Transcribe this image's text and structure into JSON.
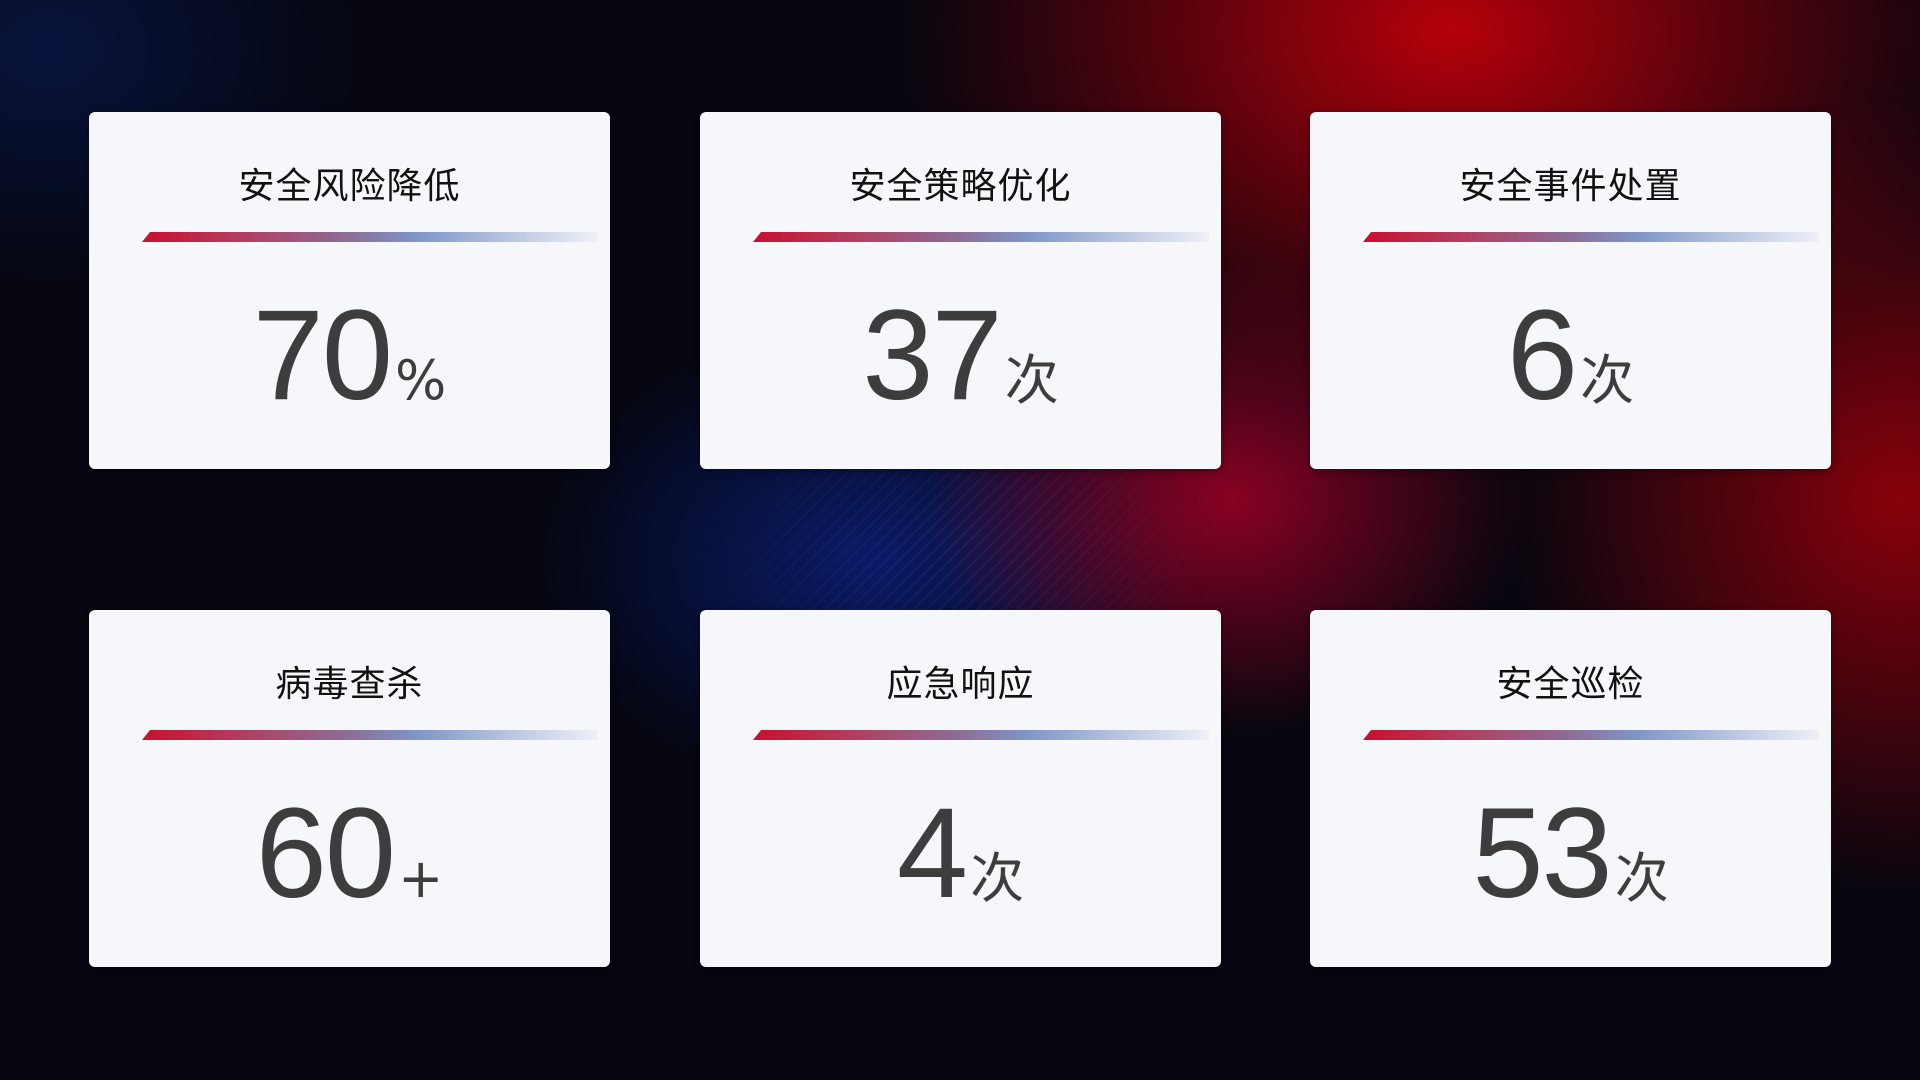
{
  "cards": [
    {
      "title": "安全风险降低",
      "value": "70",
      "suffix": "%"
    },
    {
      "title": "安全策略优化",
      "value": "37",
      "suffix": "次"
    },
    {
      "title": "安全事件处置",
      "value": "6",
      "suffix": "次"
    },
    {
      "title": "病毒查杀",
      "value": "60",
      "suffix": "+"
    },
    {
      "title": "应急响应",
      "value": "4",
      "suffix": "次"
    },
    {
      "title": "安全巡检",
      "value": "53",
      "suffix": "次"
    }
  ],
  "colors": {
    "accent_red": "#c8102e",
    "accent_blue": "#7f95c6",
    "card_bg": "#f6f7fb",
    "value_text": "#3d3d3d"
  }
}
